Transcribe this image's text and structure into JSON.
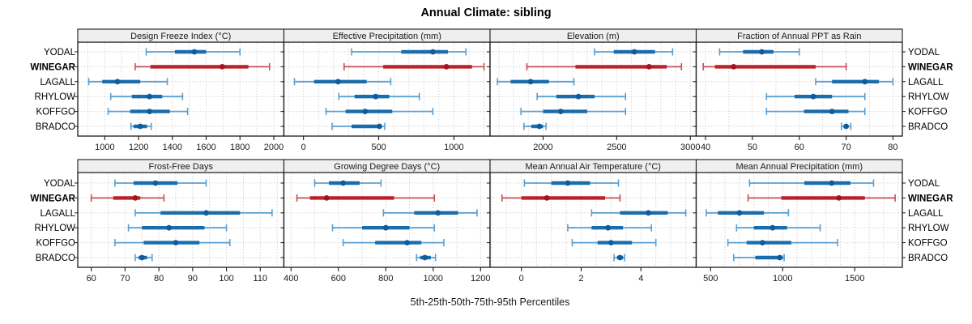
{
  "title": "Annual Climate: sibling",
  "xlabel": "5th-25th-50th-75th-95th Percentiles",
  "stations": [
    "YODAL",
    "WINEGAR",
    "LAGALL",
    "RHYLOW",
    "KOFFGO",
    "BRADCO"
  ],
  "highlighted_station": "WINEGAR",
  "colors": {
    "station": {
      "whisker": "#5b9fd0",
      "band": "#1a6dad",
      "dot": "#0d5c9e"
    },
    "highlight": {
      "whisker": "#c94f53",
      "band": "#bd2026",
      "dot": "#a2151b"
    },
    "strip_bg": "#efefef",
    "grid": "#c4c4c4",
    "border": "#1a1a1a",
    "text": "#1a1a1a"
  },
  "chart_data": {
    "type": "scatter",
    "style": "dot-and-whisker percentile plot: dot = 50th percentile, thick band = 25th-75th, thin whisker with caps = 5th-95th",
    "percentile_labels": [
      "5th",
      "25th",
      "50th",
      "75th",
      "95th"
    ],
    "categories": [
      "YODAL",
      "WINEGAR",
      "LAGALL",
      "RHYLOW",
      "KOFFGO",
      "BRADCO"
    ],
    "legend_position": "none",
    "grid": "dotted minor and major vertical gridlines plus dotted row guides",
    "panels": [
      {
        "title": "Design Freeze Index (°C)",
        "xlim": [
          840,
          2060
        ],
        "ticks": [
          1000,
          1200,
          1400,
          1600,
          1800,
          2000
        ],
        "minor_step": 100,
        "values": [
          [
            1245,
            1415,
            1530,
            1600,
            1800
          ],
          [
            1180,
            1270,
            1695,
            1850,
            1975
          ],
          [
            905,
            985,
            1075,
            1210,
            1370
          ],
          [
            1035,
            1160,
            1265,
            1340,
            1460
          ],
          [
            1020,
            1150,
            1265,
            1385,
            1490
          ],
          [
            1155,
            1170,
            1210,
            1250,
            1275
          ]
        ]
      },
      {
        "title": "Effective Precipitation (mm)",
        "xlim": [
          -130,
          1240
        ],
        "ticks": [
          0,
          500,
          1000
        ],
        "minor_step": 100,
        "values": [
          [
            320,
            650,
            860,
            960,
            1080
          ],
          [
            270,
            530,
            950,
            1120,
            1200
          ],
          [
            -60,
            70,
            230,
            420,
            580
          ],
          [
            235,
            340,
            480,
            570,
            770
          ],
          [
            150,
            280,
            410,
            590,
            860
          ],
          [
            190,
            320,
            505,
            520,
            540
          ]
        ]
      },
      {
        "title": "Elevation (m)",
        "xlim": [
          1640,
          3040
        ],
        "ticks": [
          2000,
          2500,
          3000
        ],
        "minor_step": 100,
        "values": [
          [
            2350,
            2480,
            2620,
            2760,
            2880
          ],
          [
            1890,
            2220,
            2720,
            2840,
            2940
          ],
          [
            1690,
            1780,
            1915,
            2040,
            2210
          ],
          [
            1960,
            2090,
            2240,
            2350,
            2560
          ],
          [
            1850,
            2000,
            2120,
            2300,
            2560
          ],
          [
            1870,
            1920,
            1975,
            2000,
            2020
          ]
        ]
      },
      {
        "title": "Fraction of Annual PPT as Rain",
        "xlim": [
          38,
          82
        ],
        "ticks": [
          40,
          50,
          60,
          70,
          80
        ],
        "minor_step": 5,
        "values": [
          [
            43,
            48,
            52,
            54.5,
            60
          ],
          [
            39.5,
            42,
            46,
            63.5,
            70
          ],
          [
            63.5,
            67,
            74,
            77,
            80
          ],
          [
            53,
            59,
            63,
            67,
            74
          ],
          [
            53,
            61,
            67,
            70.5,
            74
          ],
          [
            69,
            69.5,
            70,
            70.5,
            71
          ]
        ]
      },
      {
        "title": "Frost-Free Days",
        "xlim": [
          56,
          117
        ],
        "ticks": [
          60,
          70,
          80,
          90,
          100,
          110
        ],
        "minor_step": 5,
        "values": [
          [
            67,
            72.5,
            79,
            85.5,
            94
          ],
          [
            60,
            66.5,
            73,
            74.5,
            81.5
          ],
          [
            73,
            80.5,
            94,
            104,
            113.5
          ],
          [
            71,
            75,
            83,
            93.5,
            100
          ],
          [
            67,
            75.5,
            85,
            92,
            101
          ],
          [
            73,
            74,
            75,
            76.5,
            78
          ]
        ]
      },
      {
        "title": "Growing Degree Days (°C)",
        "xlim": [
          370,
          1240
        ],
        "ticks": [
          400,
          600,
          800,
          1000,
          1200
        ],
        "minor_step": 100,
        "values": [
          [
            500,
            560,
            620,
            690,
            780
          ],
          [
            425,
            480,
            550,
            835,
            1005
          ],
          [
            790,
            920,
            1020,
            1105,
            1185
          ],
          [
            575,
            700,
            800,
            900,
            1005
          ],
          [
            620,
            755,
            890,
            950,
            1045
          ],
          [
            930,
            945,
            965,
            990,
            1010
          ]
        ]
      },
      {
        "title": "Mean Annual Air Temperature (°C)",
        "xlim": [
          -1.05,
          5.85
        ],
        "ticks": [
          0,
          2,
          4
        ],
        "minor_step": 0.5,
        "values": [
          [
            0.1,
            1.0,
            1.55,
            2.3,
            3.25
          ],
          [
            -0.65,
            0,
            0.85,
            2.8,
            3.3
          ],
          [
            2.35,
            3.3,
            4.25,
            4.9,
            5.5
          ],
          [
            1.55,
            2.35,
            2.9,
            3.4,
            4.35
          ],
          [
            1.7,
            2.55,
            3.0,
            3.7,
            4.5
          ],
          [
            3.1,
            3.2,
            3.3,
            3.4,
            3.45
          ]
        ]
      },
      {
        "title": "Mean Annual Precipitation (mm)",
        "xlim": [
          400,
          1830
        ],
        "ticks": [
          500,
          1000,
          1500
        ],
        "minor_step": 100,
        "values": [
          [
            770,
            1150,
            1340,
            1470,
            1630
          ],
          [
            760,
            990,
            1390,
            1570,
            1780
          ],
          [
            470,
            550,
            700,
            870,
            1040
          ],
          [
            680,
            800,
            930,
            1030,
            1260
          ],
          [
            620,
            750,
            860,
            1060,
            1380
          ],
          [
            660,
            810,
            980,
            1000,
            1010
          ]
        ]
      }
    ]
  }
}
